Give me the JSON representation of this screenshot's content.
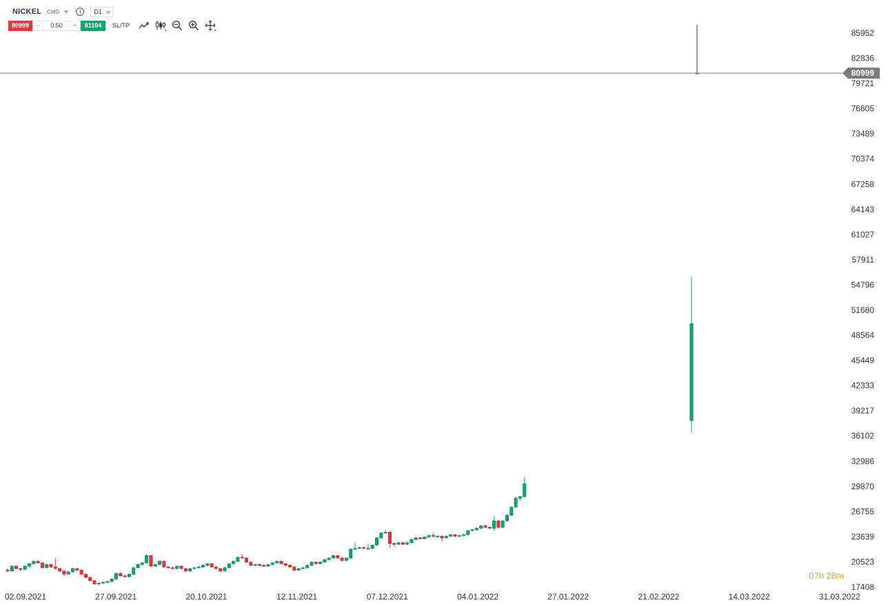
{
  "header": {
    "symbol": "NICKEL",
    "type_label": "CMD",
    "timeframe": "D1",
    "sell_price": "80999",
    "volume": "0.50",
    "buy_price": "81104",
    "sltp_label": "SL/TP",
    "minus": "–",
    "plus": "+",
    "info": "i"
  },
  "countdown": {
    "hours": "07",
    "h": "h",
    "minutes": "28",
    "m": "m"
  },
  "colors": {
    "up": "#14a372",
    "down": "#e0393e",
    "price_line": "#7a7a7a",
    "price_label_bg": "#7a7a7a",
    "axis_text": "#333333",
    "countdown": "#f0a020"
  },
  "icons": [
    "line-chart-icon",
    "candlestick-icon",
    "zoom-out-icon",
    "zoom-in-icon",
    "move-icon"
  ],
  "chart_data": {
    "type": "candlestick",
    "title": "",
    "ylim": [
      17408,
      88500
    ],
    "y_ticks": [
      85952,
      82836,
      79721,
      76605,
      73489,
      70374,
      67258,
      64143,
      61027,
      57911,
      54796,
      51680,
      48564,
      45449,
      42333,
      39217,
      36102,
      32986,
      29870,
      26755,
      23639,
      20523,
      17408
    ],
    "x_tick_labels": [
      "02.09.2021",
      "27.09.2021",
      "20.10.2021",
      "12.11.2021",
      "07.12.2021",
      "04.01.2022",
      "27.01.2022",
      "21.02.2022",
      "14.03.2022",
      "31.03.2022"
    ],
    "current_price": 80999,
    "grid": false,
    "candles": [
      [
        19500,
        19400,
        19700,
        19300
      ],
      [
        19400,
        20000,
        20100,
        19300
      ],
      [
        20000,
        19700,
        20100,
        19600
      ],
      [
        19700,
        19600,
        19800,
        19400
      ],
      [
        19600,
        20000,
        20100,
        19500
      ],
      [
        20000,
        20300,
        20400,
        19900
      ],
      [
        20300,
        20600,
        20700,
        20200
      ],
      [
        20600,
        20400,
        20700,
        20300
      ],
      [
        20400,
        19800,
        20500,
        19700
      ],
      [
        19800,
        20200,
        20300,
        19700
      ],
      [
        20200,
        19900,
        20300,
        19800
      ],
      [
        19900,
        19700,
        21000,
        19600
      ],
      [
        19700,
        19400,
        19800,
        19300
      ],
      [
        19400,
        19000,
        19500,
        18800
      ],
      [
        19000,
        19300,
        19400,
        18900
      ],
      [
        19300,
        19700,
        19800,
        19200
      ],
      [
        19700,
        19500,
        19800,
        19400
      ],
      [
        19500,
        19000,
        19600,
        18900
      ],
      [
        19000,
        18600,
        19100,
        18500
      ],
      [
        18600,
        18200,
        18700,
        18100
      ],
      [
        18200,
        17800,
        18300,
        17700
      ],
      [
        17800,
        17900,
        18000,
        17600
      ],
      [
        17900,
        18000,
        18100,
        17800
      ],
      [
        18000,
        18100,
        18200,
        17900
      ],
      [
        18100,
        18400,
        18500,
        18000
      ],
      [
        18400,
        19100,
        19200,
        18300
      ],
      [
        19100,
        18800,
        19200,
        18700
      ],
      [
        18800,
        18700,
        18900,
        18600
      ],
      [
        18700,
        19000,
        19100,
        18600
      ],
      [
        19000,
        19800,
        19900,
        18900
      ],
      [
        19800,
        20200,
        20300,
        19700
      ],
      [
        20200,
        20400,
        20500,
        20100
      ],
      [
        20400,
        21300,
        21500,
        20300
      ],
      [
        21300,
        20000,
        21400,
        19900
      ],
      [
        20000,
        20200,
        20300,
        19900
      ],
      [
        20200,
        20600,
        20700,
        20100
      ],
      [
        20600,
        19900,
        20700,
        19800
      ],
      [
        19900,
        19800,
        20000,
        19700
      ],
      [
        19800,
        19700,
        19900,
        19600
      ],
      [
        19700,
        20000,
        20100,
        19600
      ],
      [
        20000,
        19700,
        20100,
        19600
      ],
      [
        19700,
        19400,
        19800,
        19300
      ],
      [
        19400,
        19700,
        19800,
        19300
      ],
      [
        19700,
        19800,
        19900,
        19600
      ],
      [
        19800,
        19900,
        20000,
        19700
      ],
      [
        19900,
        20100,
        20200,
        19800
      ],
      [
        20100,
        20300,
        20400,
        20000
      ],
      [
        20300,
        19900,
        20400,
        19800
      ],
      [
        19900,
        19700,
        20000,
        19600
      ],
      [
        19700,
        19400,
        19800,
        19300
      ],
      [
        19400,
        19800,
        19900,
        19300
      ],
      [
        19800,
        20300,
        20400,
        19700
      ],
      [
        20300,
        20600,
        20700,
        20200
      ],
      [
        20600,
        21100,
        21200,
        20500
      ],
      [
        21100,
        21000,
        21500,
        20900
      ],
      [
        21000,
        20500,
        21100,
        20400
      ],
      [
        20500,
        20100,
        20600,
        20000
      ],
      [
        20100,
        20200,
        20300,
        20000
      ],
      [
        20200,
        20100,
        20300,
        20000
      ],
      [
        20100,
        20000,
        20200,
        19900
      ],
      [
        20000,
        20200,
        20300,
        19900
      ],
      [
        20200,
        20400,
        20500,
        20100
      ],
      [
        20400,
        20600,
        20700,
        20300
      ],
      [
        20600,
        20300,
        20700,
        20200
      ],
      [
        20300,
        20100,
        20400,
        20000
      ],
      [
        20100,
        19900,
        20200,
        19800
      ],
      [
        19900,
        19500,
        20000,
        19400
      ],
      [
        19500,
        19700,
        19800,
        19400
      ],
      [
        19700,
        19800,
        19900,
        19600
      ],
      [
        19800,
        20100,
        20200,
        19700
      ],
      [
        20100,
        20500,
        20600,
        20000
      ],
      [
        20500,
        20300,
        20600,
        20200
      ],
      [
        20300,
        20500,
        20600,
        20200
      ],
      [
        20500,
        20800,
        20900,
        20400
      ],
      [
        20800,
        21000,
        21100,
        20700
      ],
      [
        21000,
        21300,
        21400,
        20900
      ],
      [
        21300,
        21000,
        21400,
        20900
      ],
      [
        21000,
        20700,
        21100,
        20600
      ],
      [
        20700,
        21000,
        21100,
        20600
      ],
      [
        21000,
        22100,
        22200,
        20900
      ],
      [
        22100,
        22200,
        22900,
        22000
      ],
      [
        22200,
        22300,
        22400,
        22100
      ],
      [
        22300,
        22200,
        22400,
        22100
      ],
      [
        22200,
        22200,
        22800,
        22100
      ],
      [
        22200,
        22600,
        22700,
        22100
      ],
      [
        22600,
        23500,
        23600,
        22500
      ],
      [
        23500,
        24100,
        24200,
        23400
      ],
      [
        24100,
        24200,
        24500,
        24000
      ],
      [
        24200,
        22800,
        24300,
        22200
      ],
      [
        22800,
        22700,
        22900,
        22400
      ],
      [
        22700,
        22900,
        23000,
        22600
      ],
      [
        22900,
        22700,
        23000,
        22600
      ],
      [
        22700,
        22900,
        23000,
        22600
      ],
      [
        22900,
        23300,
        23400,
        22800
      ],
      [
        23300,
        23500,
        23600,
        23200
      ],
      [
        23500,
        23400,
        23600,
        23300
      ],
      [
        23400,
        23600,
        23700,
        23300
      ],
      [
        23600,
        23800,
        23900,
        23500
      ],
      [
        23800,
        23700,
        24100,
        23600
      ],
      [
        23700,
        23700,
        23800,
        23600
      ],
      [
        23700,
        23500,
        23800,
        23000
      ],
      [
        23500,
        23700,
        23800,
        23400
      ],
      [
        23700,
        23900,
        24000,
        23600
      ],
      [
        23900,
        23700,
        24000,
        23600
      ],
      [
        23700,
        23800,
        23900,
        23600
      ],
      [
        23800,
        23900,
        24000,
        23700
      ],
      [
        23900,
        24400,
        24500,
        23800
      ],
      [
        24400,
        24500,
        24600,
        24300
      ],
      [
        24500,
        24700,
        24800,
        24400
      ],
      [
        24700,
        25000,
        25100,
        24600
      ],
      [
        25000,
        24800,
        25100,
        24700
      ],
      [
        24800,
        24700,
        24900,
        24600
      ],
      [
        24700,
        25600,
        26200,
        24400
      ],
      [
        25600,
        24800,
        25700,
        24600
      ],
      [
        24800,
        25600,
        25700,
        24700
      ],
      [
        25600,
        26300,
        26400,
        25500
      ],
      [
        26300,
        27300,
        27400,
        26200
      ],
      [
        27300,
        28400,
        28600,
        27200
      ],
      [
        28400,
        28600,
        28700,
        28100
      ],
      [
        28600,
        30200,
        31000,
        28500
      ],
      [
        38000,
        50000,
        55800,
        36500
      ],
      [
        80999,
        80999,
        87000,
        80999
      ]
    ]
  }
}
